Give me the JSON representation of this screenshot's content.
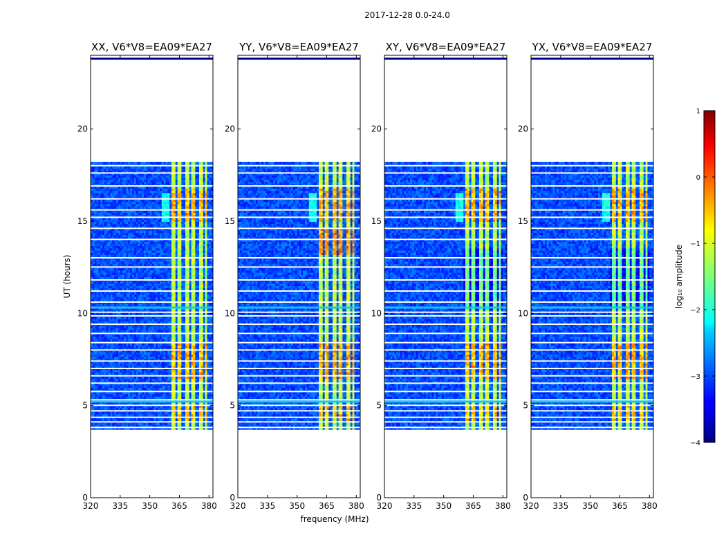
{
  "figure": {
    "suptitle": "2017-12-28 0.0-24.0"
  },
  "chart_data": {
    "type": "heatmap",
    "panels": [
      {
        "title": "XX, V6*V8=EA09*EA27"
      },
      {
        "title": "YY, V6*V8=EA09*EA27"
      },
      {
        "title": "XY, V6*V8=EA09*EA27"
      },
      {
        "title": "YX, V6*V8=EA09*EA27"
      }
    ],
    "xlabel": "frequency (MHz)",
    "ylabel": "UT (hours)",
    "xlim": [
      320,
      382
    ],
    "ylim": [
      0,
      24
    ],
    "x_ticks": [
      320,
      335,
      350,
      365,
      380
    ],
    "y_ticks": [
      0,
      5,
      10,
      15,
      20
    ],
    "data_time_range": [
      3.7,
      18.2
    ],
    "bright_band_mhz": [
      360,
      379.5
    ],
    "bright_band_channels": [
      360,
      363.5,
      367,
      370.5,
      374,
      377.5,
      379.5
    ],
    "flagged_rows_hours": [
      3.8,
      4.1,
      4.35,
      4.7,
      5.0,
      5.3,
      5.75,
      6.2,
      6.6,
      7.0,
      7.4,
      8.0,
      8.4,
      8.9,
      9.4,
      9.85,
      10.05,
      10.6,
      11.2,
      11.8,
      12.5,
      13.0,
      14.0,
      14.6,
      15.2,
      15.6,
      16.2,
      16.9,
      17.6,
      18.0
    ],
    "bad_rows_hours": [
      10.3,
      5.2,
      23.8
    ],
    "colorbar": {
      "label": "log₁₀ amplitude",
      "colormap": "jet",
      "range": [
        -4,
        1
      ],
      "ticks": [
        -4,
        -3,
        -2,
        -1,
        0,
        1
      ],
      "tick_labels": [
        "−4",
        "−3",
        "−2",
        "−1",
        "0",
        "1"
      ]
    }
  }
}
